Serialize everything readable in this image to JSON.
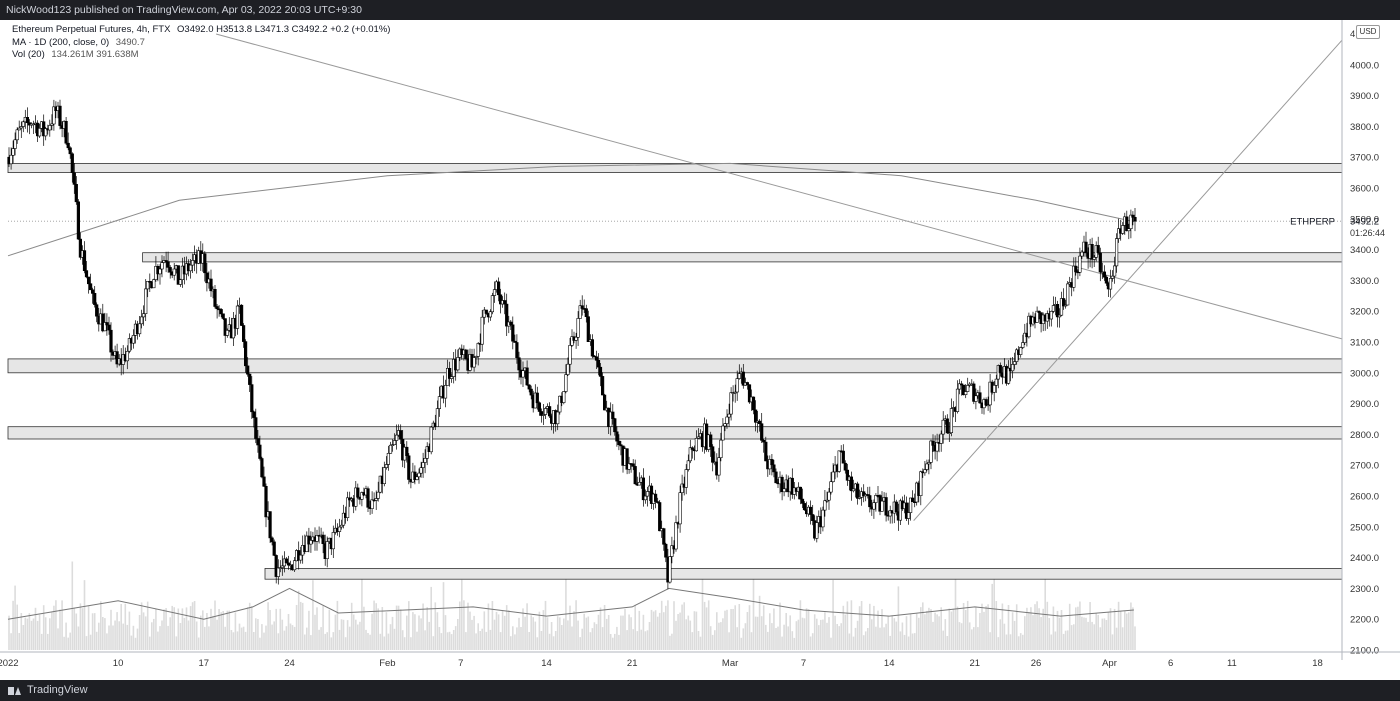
{
  "header": {
    "publisher_line": "NickWood123 published on TradingView.com, Apr 03, 2022 20:03 UTC+9:30"
  },
  "legend": {
    "symbol_line": "Ethereum Perpetual Futures, 4h, FTX",
    "ohlc": "O3492.0  H3513.8  L3471.3  C3492.2  +0.2 (+0.01%)",
    "ma_line": "MA · 1D (200, close, 0)",
    "ma_value": "3490.7",
    "vol_line": "Vol (20)",
    "vol_values": "134.261M  391.638M"
  },
  "currency_badge": "USD",
  "footer": {
    "brand": "TradingView"
  },
  "price_tag": {
    "symbol": "ETHPERP",
    "price": "3492.2",
    "countdown": "01:26:44"
  },
  "colors": {
    "candle_body": "#000000",
    "zone_fill": "#e6e6e6",
    "zone_border": "#333333",
    "trendline": "#9a9a9a",
    "ma_line": "#8a8a8a",
    "volume_bar": "#dcdcdc",
    "header_bg": "#1e1f24"
  },
  "chart_data": {
    "type": "candlestick",
    "x_axis": {
      "start": "2022-01-01",
      "end": "2022-04-20",
      "ticks": [
        {
          "date": "2022-01-01",
          "label": "2022"
        },
        {
          "date": "2022-01-10",
          "label": "10"
        },
        {
          "date": "2022-01-17",
          "label": "17"
        },
        {
          "date": "2022-01-24",
          "label": "24"
        },
        {
          "date": "2022-02-01",
          "label": "Feb"
        },
        {
          "date": "2022-02-07",
          "label": "7"
        },
        {
          "date": "2022-02-14",
          "label": "14"
        },
        {
          "date": "2022-02-21",
          "label": "21"
        },
        {
          "date": "2022-03-01",
          "label": "Mar"
        },
        {
          "date": "2022-03-07",
          "label": "7"
        },
        {
          "date": "2022-03-14",
          "label": "14"
        },
        {
          "date": "2022-03-21",
          "label": "21"
        },
        {
          "date": "2022-03-26",
          "label": "26"
        },
        {
          "date": "2022-04-01",
          "label": "Apr"
        },
        {
          "date": "2022-04-06",
          "label": "6"
        },
        {
          "date": "2022-04-11",
          "label": "11"
        },
        {
          "date": "2022-04-18",
          "label": "18"
        }
      ]
    },
    "y_axis": {
      "range": [
        2100,
        4100
      ],
      "ticks": [
        2100,
        2200,
        2300,
        2400,
        2500,
        2600,
        2700,
        2800,
        2900,
        3000,
        3100,
        3200,
        3300,
        3400,
        3500,
        3600,
        3700,
        3800,
        3900,
        4000
      ]
    },
    "price_path": [
      [
        "2022-01-01",
        3700
      ],
      [
        "2022-01-02",
        3780
      ],
      [
        "2022-01-03",
        3820
      ],
      [
        "2022-01-04",
        3780
      ],
      [
        "2022-01-05",
        3850
      ],
      [
        "2022-01-06",
        3760
      ],
      [
        "2022-01-07",
        3410
      ],
      [
        "2022-01-08",
        3230
      ],
      [
        "2022-01-09",
        3150
      ],
      [
        "2022-01-10",
        3020
      ],
      [
        "2022-01-11",
        3080
      ],
      [
        "2022-01-12",
        3200
      ],
      [
        "2022-01-13",
        3330
      ],
      [
        "2022-01-14",
        3380
      ],
      [
        "2022-01-15",
        3300
      ],
      [
        "2022-01-16",
        3350
      ],
      [
        "2022-01-17",
        3370
      ],
      [
        "2022-01-18",
        3220
      ],
      [
        "2022-01-19",
        3110
      ],
      [
        "2022-01-20",
        3200
      ],
      [
        "2022-01-21",
        2880
      ],
      [
        "2022-01-22",
        2600
      ],
      [
        "2022-01-23",
        2370
      ],
      [
        "2022-01-24",
        2360
      ],
      [
        "2022-01-25",
        2440
      ],
      [
        "2022-01-26",
        2480
      ],
      [
        "2022-01-27",
        2420
      ],
      [
        "2022-01-28",
        2480
      ],
      [
        "2022-01-29",
        2580
      ],
      [
        "2022-01-30",
        2620
      ],
      [
        "2022-01-31",
        2560
      ],
      [
        "2022-02-01",
        2700
      ],
      [
        "2022-02-02",
        2800
      ],
      [
        "2022-02-03",
        2650
      ],
      [
        "2022-02-04",
        2700
      ],
      [
        "2022-02-05",
        2850
      ],
      [
        "2022-02-06",
        3000
      ],
      [
        "2022-02-07",
        3050
      ],
      [
        "2022-02-08",
        3020
      ],
      [
        "2022-02-09",
        3180
      ],
      [
        "2022-02-10",
        3270
      ],
      [
        "2022-02-11",
        3150
      ],
      [
        "2022-02-12",
        3020
      ],
      [
        "2022-02-13",
        2920
      ],
      [
        "2022-02-14",
        2880
      ],
      [
        "2022-02-15",
        2860
      ],
      [
        "2022-02-16",
        3060
      ],
      [
        "2022-02-17",
        3220
      ],
      [
        "2022-02-18",
        3050
      ],
      [
        "2022-02-19",
        2880
      ],
      [
        "2022-02-20",
        2760
      ],
      [
        "2022-02-21",
        2680
      ],
      [
        "2022-02-22",
        2620
      ],
      [
        "2022-02-23",
        2600
      ],
      [
        "2022-02-24",
        2330
      ],
      [
        "2022-02-25",
        2580
      ],
      [
        "2022-02-26",
        2760
      ],
      [
        "2022-02-27",
        2800
      ],
      [
        "2022-02-28",
        2700
      ],
      [
        "2022-03-01",
        2900
      ],
      [
        "2022-03-02",
        3000
      ],
      [
        "2022-03-03",
        2900
      ],
      [
        "2022-03-04",
        2720
      ],
      [
        "2022-03-05",
        2640
      ],
      [
        "2022-03-06",
        2640
      ],
      [
        "2022-03-07",
        2580
      ],
      [
        "2022-03-08",
        2480
      ],
      [
        "2022-03-09",
        2580
      ],
      [
        "2022-03-10",
        2740
      ],
      [
        "2022-03-11",
        2620
      ],
      [
        "2022-03-12",
        2580
      ],
      [
        "2022-03-13",
        2570
      ],
      [
        "2022-03-14",
        2570
      ],
      [
        "2022-03-15",
        2550
      ],
      [
        "2022-03-16",
        2570
      ],
      [
        "2022-03-17",
        2700
      ],
      [
        "2022-03-18",
        2790
      ],
      [
        "2022-03-19",
        2840
      ],
      [
        "2022-03-20",
        2950
      ],
      [
        "2022-03-21",
        2940
      ],
      [
        "2022-03-22",
        2900
      ],
      [
        "2022-03-23",
        3020
      ],
      [
        "2022-03-24",
        2980
      ],
      [
        "2022-03-25",
        3120
      ],
      [
        "2022-03-26",
        3180
      ],
      [
        "2022-03-27",
        3170
      ],
      [
        "2022-03-28",
        3200
      ],
      [
        "2022-03-29",
        3310
      ],
      [
        "2022-03-30",
        3400
      ],
      [
        "2022-03-31",
        3380
      ],
      [
        "2022-04-01",
        3260
      ],
      [
        "2022-04-02",
        3480
      ],
      [
        "2022-04-03",
        3492
      ]
    ],
    "moving_average_path": [
      [
        "2022-01-01",
        3380
      ],
      [
        "2022-01-15",
        3560
      ],
      [
        "2022-02-01",
        3640
      ],
      [
        "2022-02-15",
        3670
      ],
      [
        "2022-03-01",
        3680
      ],
      [
        "2022-03-15",
        3640
      ],
      [
        "2022-03-26",
        3560
      ],
      [
        "2022-04-03",
        3491
      ]
    ],
    "volume_ma_path": [
      [
        "2022-01-01",
        2200
      ],
      [
        "2022-01-10",
        2260
      ],
      [
        "2022-01-17",
        2200
      ],
      [
        "2022-01-21",
        2240
      ],
      [
        "2022-01-24",
        2300
      ],
      [
        "2022-01-28",
        2220
      ],
      [
        "2022-02-08",
        2240
      ],
      [
        "2022-02-14",
        2210
      ],
      [
        "2022-02-21",
        2240
      ],
      [
        "2022-02-24",
        2300
      ],
      [
        "2022-03-01",
        2270
      ],
      [
        "2022-03-07",
        2230
      ],
      [
        "2022-03-14",
        2210
      ],
      [
        "2022-03-21",
        2240
      ],
      [
        "2022-03-28",
        2210
      ],
      [
        "2022-04-03",
        2230
      ]
    ],
    "horizontal_zones": [
      {
        "from": "2022-01-01",
        "low": 3650,
        "high": 3680
      },
      {
        "from": "2022-01-12",
        "low": 3360,
        "high": 3390
      },
      {
        "from": "2022-01-01",
        "low": 3000,
        "high": 3045
      },
      {
        "from": "2022-01-01",
        "low": 2785,
        "high": 2825
      },
      {
        "from": "2022-01-22",
        "low": 2330,
        "high": 2365
      }
    ],
    "trendlines": [
      {
        "start": [
          "2022-01-18",
          4100
        ],
        "end": [
          "2022-04-20",
          3110
        ]
      },
      {
        "start": [
          "2022-03-16",
          2520
        ],
        "end": [
          "2022-04-20",
          4080
        ]
      }
    ],
    "last_price": 3492.2
  }
}
